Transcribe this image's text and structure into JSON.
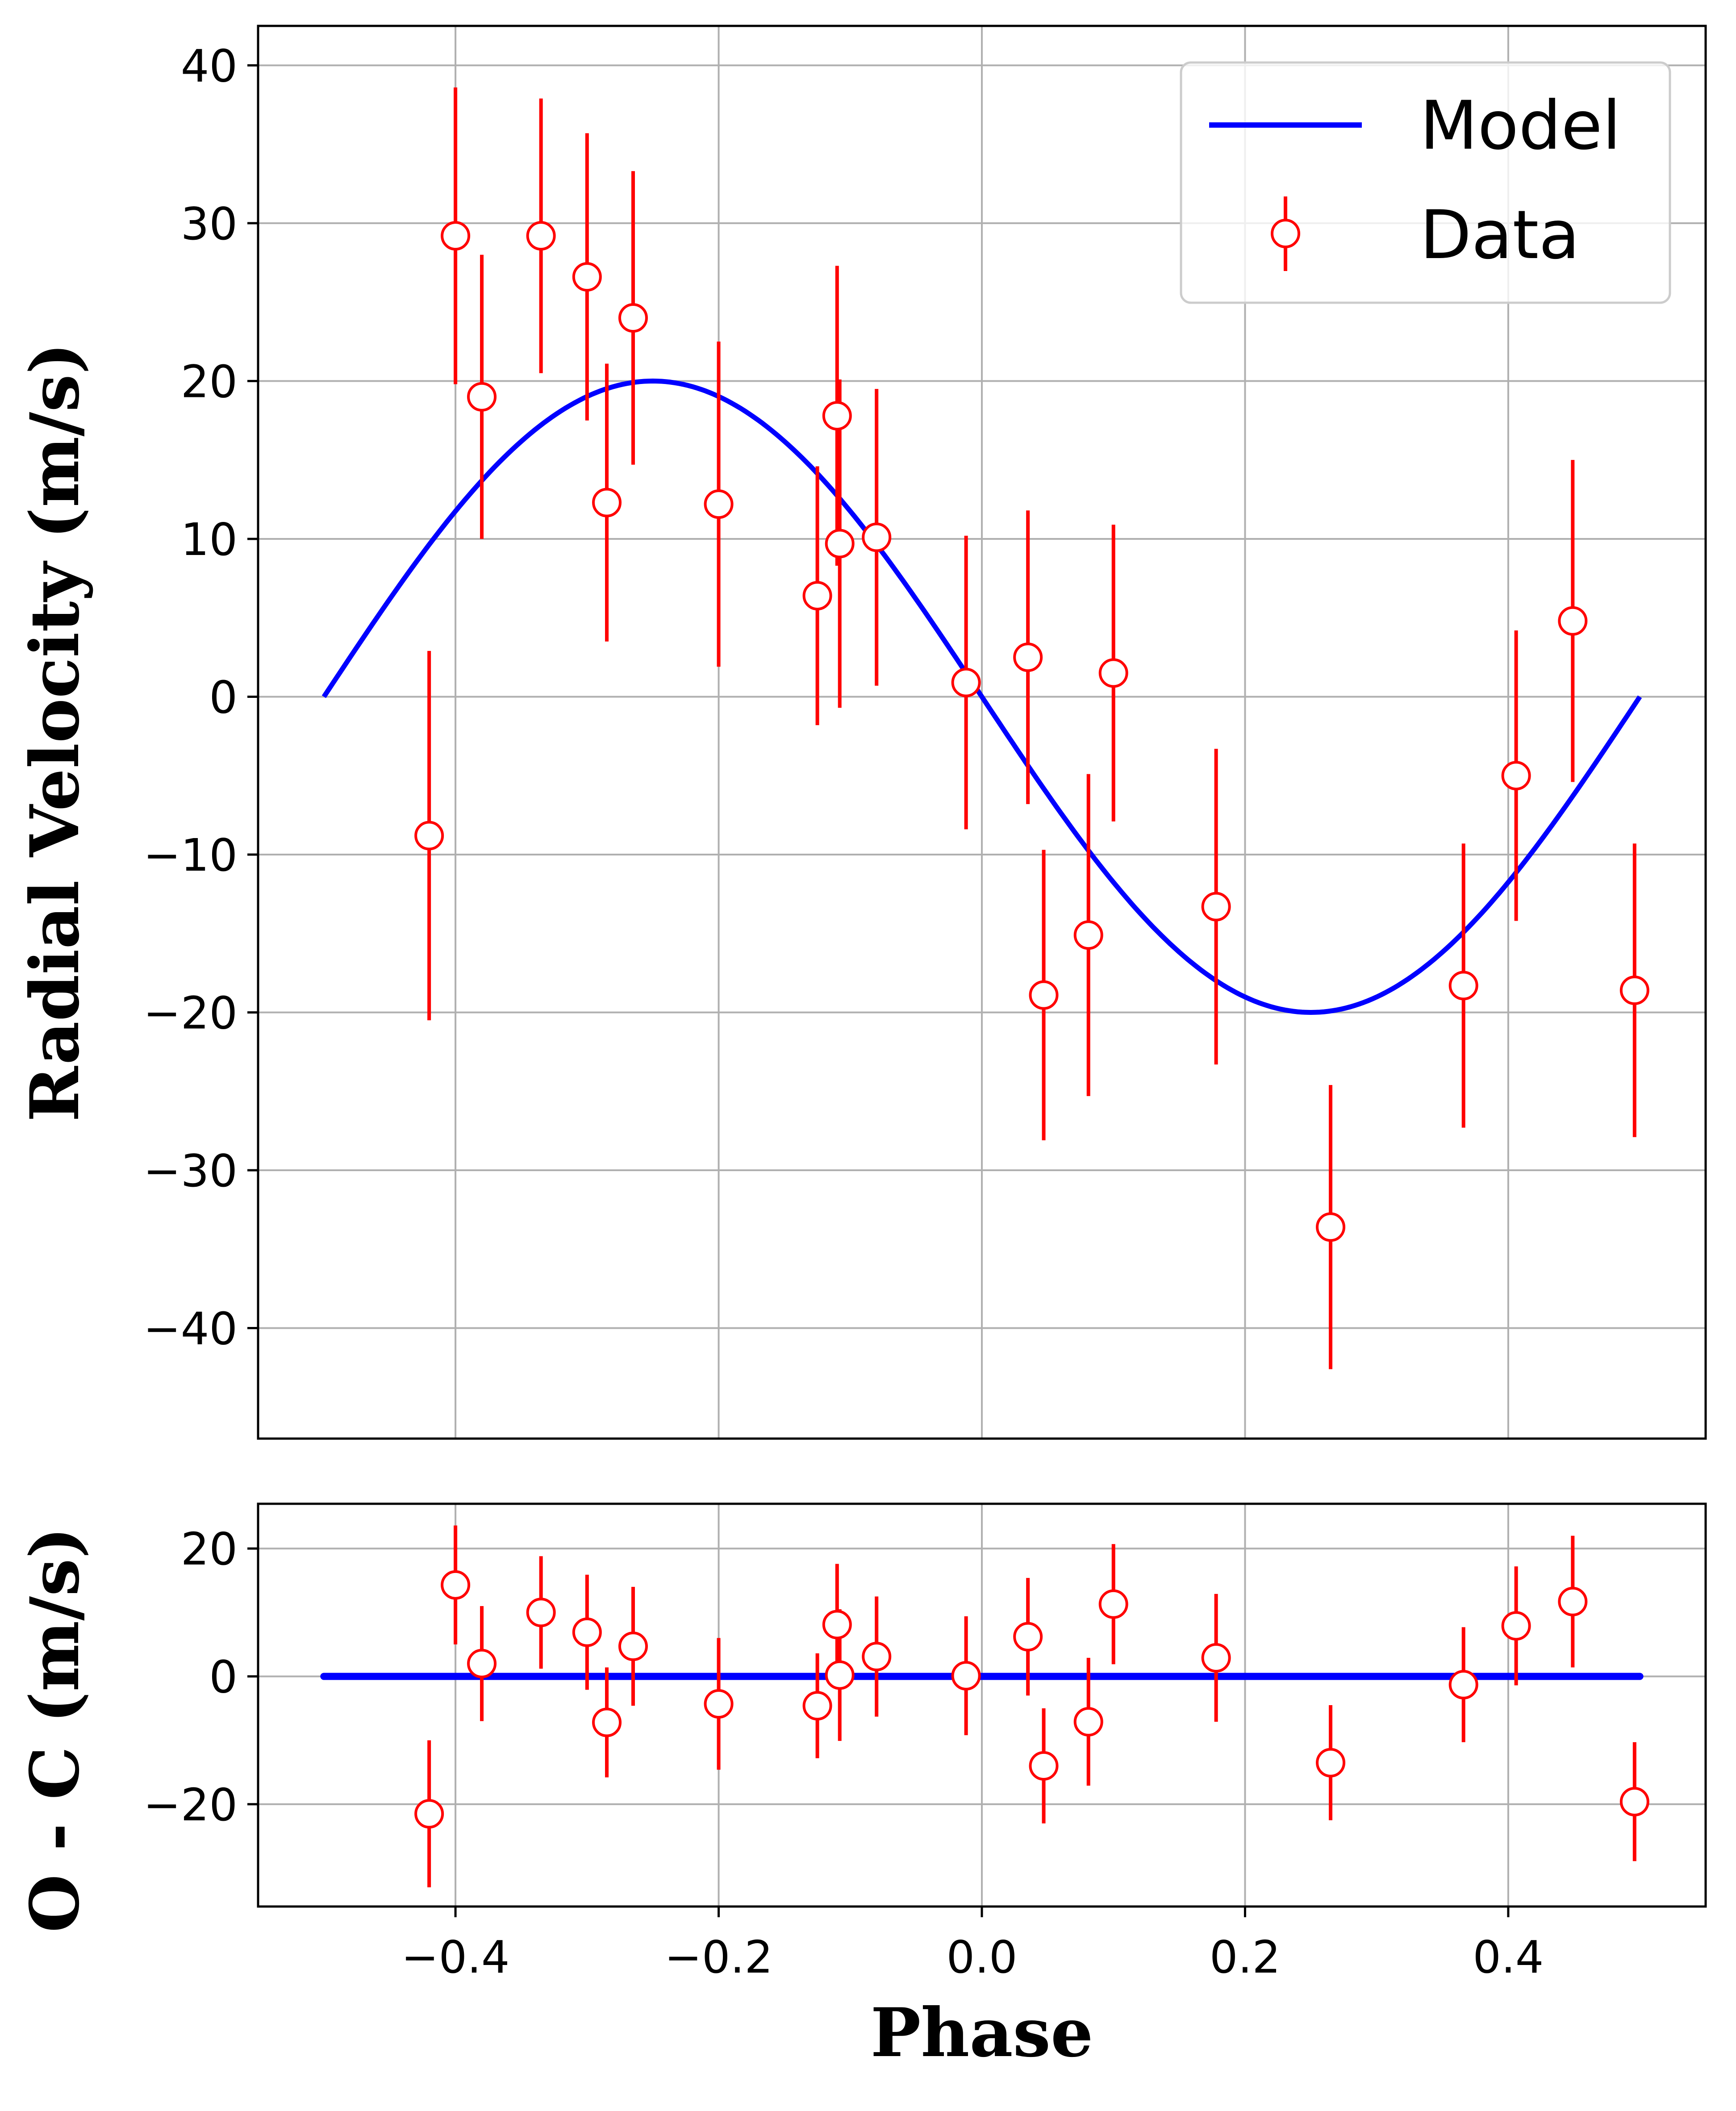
{
  "chart_data": [
    {
      "type": "scatter",
      "panel": "radial-velocity",
      "title": "",
      "xlabel": "",
      "ylabel": "Radial Velocity (m/s)",
      "xlim": [
        -0.55,
        0.55
      ],
      "ylim": [
        -47,
        42.5
      ],
      "xticks": [
        -0.4,
        -0.2,
        0.0,
        0.2,
        0.4
      ],
      "yticks": [
        -40,
        -30,
        -20,
        -10,
        0,
        10,
        20,
        30,
        40
      ],
      "ytick_labels": [
        "−40",
        "−30",
        "−20",
        "−10",
        "0",
        "10",
        "20",
        "30",
        "40"
      ],
      "grid": true,
      "legend": {
        "placement": "top-right",
        "entries": [
          "Model",
          "Data"
        ]
      },
      "series": [
        {
          "name": "Model",
          "kind": "line",
          "color": "#0000ff",
          "model": {
            "amplitude": 20.0,
            "phase_min": -0.5,
            "phase_max": 0.5
          }
        },
        {
          "name": "Data",
          "kind": "errorbar",
          "color": "#ff0000",
          "points": [
            {
              "x": -0.42,
              "y": -8.8,
              "err": 11.7
            },
            {
              "x": -0.4,
              "y": 29.2,
              "err": 9.4
            },
            {
              "x": -0.38,
              "y": 19.0,
              "err": 9.0
            },
            {
              "x": -0.335,
              "y": 29.2,
              "err": 8.7
            },
            {
              "x": -0.3,
              "y": 26.6,
              "err": 9.1
            },
            {
              "x": -0.285,
              "y": 12.3,
              "err": 8.8
            },
            {
              "x": -0.265,
              "y": 24.0,
              "err": 9.3
            },
            {
              "x": -0.2,
              "y": 12.2,
              "err": 10.3
            },
            {
              "x": -0.125,
              "y": 6.4,
              "err": 8.2
            },
            {
              "x": -0.11,
              "y": 17.8,
              "err": 9.5
            },
            {
              "x": -0.108,
              "y": 9.7,
              "err": 10.4
            },
            {
              "x": -0.08,
              "y": 10.1,
              "err": 9.4
            },
            {
              "x": -0.012,
              "y": 0.9,
              "err": 9.3
            },
            {
              "x": 0.035,
              "y": 2.5,
              "err": 9.3
            },
            {
              "x": 0.047,
              "y": -18.9,
              "err": 9.2
            },
            {
              "x": 0.081,
              "y": -15.1,
              "err": 10.2
            },
            {
              "x": 0.1,
              "y": 1.5,
              "err": 9.4
            },
            {
              "x": 0.178,
              "y": -13.3,
              "err": 10.0
            },
            {
              "x": 0.265,
              "y": -33.6,
              "err": 9.0
            },
            {
              "x": 0.366,
              "y": -18.3,
              "err": 9.0
            },
            {
              "x": 0.406,
              "y": -5.0,
              "err": 9.2
            },
            {
              "x": 0.449,
              "y": 4.8,
              "err": 10.2
            },
            {
              "x": 0.496,
              "y": -18.6,
              "err": 9.3
            }
          ]
        }
      ]
    },
    {
      "type": "scatter",
      "panel": "residuals",
      "title": "",
      "xlabel": "Phase",
      "ylabel": "O - C (m/s)",
      "xlim": [
        -0.55,
        0.55
      ],
      "ylim": [
        -36,
        27
      ],
      "xticks": [
        -0.4,
        -0.2,
        0.0,
        0.2,
        0.4
      ],
      "xtick_labels": [
        "−0.4",
        "−0.2",
        "0.0",
        "0.2",
        "0.4"
      ],
      "yticks": [
        -20,
        0,
        20
      ],
      "ytick_labels": [
        "−20",
        "0",
        "20"
      ],
      "grid": true,
      "series": [
        {
          "name": "",
          "kind": "line",
          "color": "#0000ff",
          "x": [
            -0.5,
            0.5
          ],
          "y": [
            0,
            0
          ]
        },
        {
          "name": "",
          "kind": "errorbar",
          "color": "#ff0000",
          "points": [
            {
              "x": -0.42,
              "y": -21.5,
              "err": 11.5
            },
            {
              "x": -0.4,
              "y": 14.3,
              "err": 9.3
            },
            {
              "x": -0.38,
              "y": 2.0,
              "err": 9.0
            },
            {
              "x": -0.335,
              "y": 10.0,
              "err": 8.8
            },
            {
              "x": -0.3,
              "y": 6.9,
              "err": 9.0
            },
            {
              "x": -0.285,
              "y": -7.2,
              "err": 8.6
            },
            {
              "x": -0.265,
              "y": 4.7,
              "err": 9.3
            },
            {
              "x": -0.2,
              "y": -4.3,
              "err": 10.3
            },
            {
              "x": -0.125,
              "y": -4.6,
              "err": 8.2
            },
            {
              "x": -0.11,
              "y": 8.1,
              "err": 9.5
            },
            {
              "x": -0.108,
              "y": 0.2,
              "err": 10.3
            },
            {
              "x": -0.08,
              "y": 3.1,
              "err": 9.4
            },
            {
              "x": -0.012,
              "y": 0.1,
              "err": 9.3
            },
            {
              "x": 0.035,
              "y": 6.2,
              "err": 9.2
            },
            {
              "x": 0.047,
              "y": -14.0,
              "err": 9.0
            },
            {
              "x": 0.081,
              "y": -7.1,
              "err": 10.0
            },
            {
              "x": 0.1,
              "y": 11.3,
              "err": 9.4
            },
            {
              "x": 0.178,
              "y": 2.9,
              "err": 10.0
            },
            {
              "x": 0.265,
              "y": -13.5,
              "err": 9.0
            },
            {
              "x": 0.366,
              "y": -1.3,
              "err": 9.0
            },
            {
              "x": 0.406,
              "y": 7.9,
              "err": 9.3
            },
            {
              "x": 0.449,
              "y": 11.7,
              "err": 10.3
            },
            {
              "x": 0.496,
              "y": -19.6,
              "err": 9.3
            }
          ]
        }
      ]
    }
  ]
}
